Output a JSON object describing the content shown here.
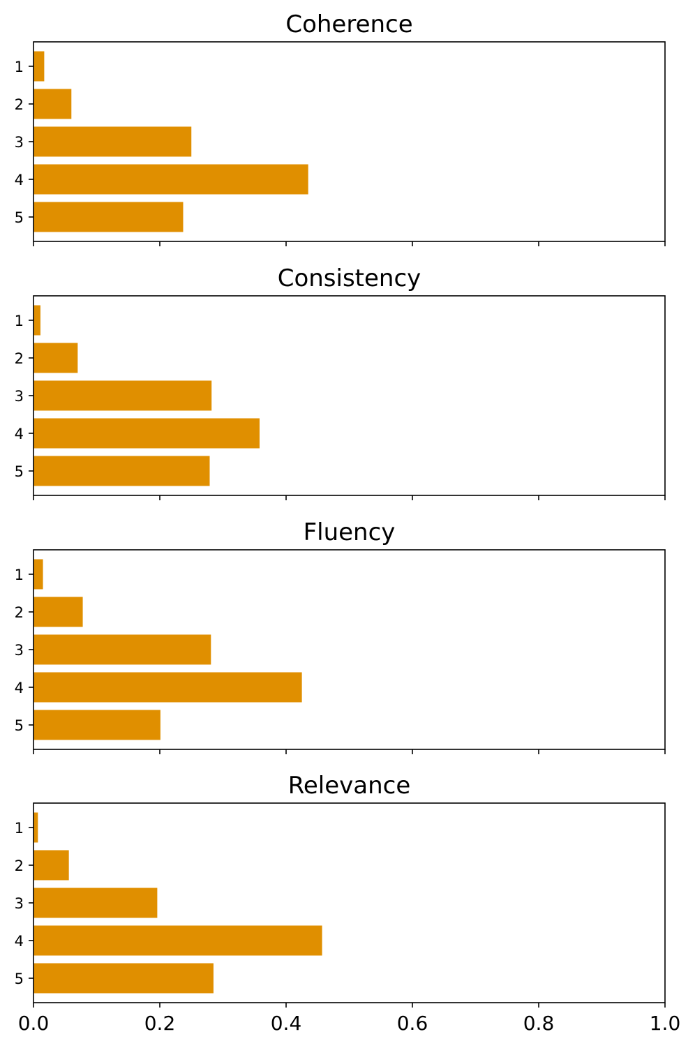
{
  "chart_data": [
    {
      "type": "bar",
      "orientation": "horizontal",
      "title": "Coherence",
      "categories": [
        "1",
        "2",
        "3",
        "4",
        "5"
      ],
      "values": [
        0.017,
        0.06,
        0.25,
        0.435,
        0.237
      ],
      "xlim": [
        0,
        1.0
      ],
      "grid": false,
      "color": "#e08f00"
    },
    {
      "type": "bar",
      "orientation": "horizontal",
      "title": "Consistency",
      "categories": [
        "1",
        "2",
        "3",
        "4",
        "5"
      ],
      "values": [
        0.011,
        0.07,
        0.282,
        0.358,
        0.279
      ],
      "xlim": [
        0,
        1.0
      ],
      "grid": false,
      "color": "#e08f00"
    },
    {
      "type": "bar",
      "orientation": "horizontal",
      "title": "Fluency",
      "categories": [
        "1",
        "2",
        "3",
        "4",
        "5"
      ],
      "values": [
        0.015,
        0.078,
        0.281,
        0.425,
        0.201
      ],
      "xlim": [
        0,
        1.0
      ],
      "grid": false,
      "color": "#e08f00"
    },
    {
      "type": "bar",
      "orientation": "horizontal",
      "title": "Relevance",
      "categories": [
        "1",
        "2",
        "3",
        "4",
        "5"
      ],
      "values": [
        0.007,
        0.056,
        0.196,
        0.457,
        0.285
      ],
      "xlim": [
        0,
        1.0
      ],
      "grid": false,
      "color": "#e08f00"
    }
  ],
  "shared_x_tick_labels": [
    "0.0",
    "0.2",
    "0.4",
    "0.6",
    "0.8",
    "1.0"
  ]
}
